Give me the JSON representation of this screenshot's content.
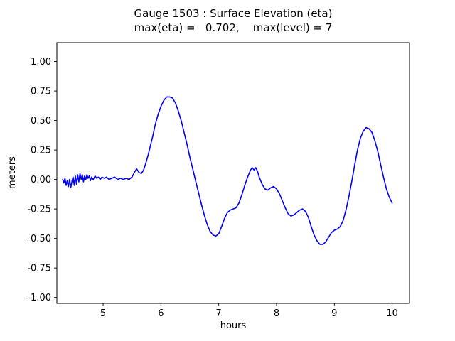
{
  "figure": {
    "background": "#ffffff"
  },
  "chart_data": {
    "type": "line",
    "title": "Gauge 1503 : Surface Elevation (eta)",
    "subtitle": "max(eta) =   0.702,    max(level) = 7",
    "xlabel": "hours",
    "ylabel": "meters",
    "xlim": [
      4.2,
      10.3
    ],
    "ylim": [
      -1.05,
      1.16
    ],
    "xticks": [
      5,
      6,
      7,
      8,
      9,
      10
    ],
    "yticks": [
      -1.0,
      -0.75,
      -0.5,
      -0.25,
      0.0,
      0.25,
      0.5,
      0.75,
      1.0
    ],
    "grid": false,
    "legend": "none",
    "line_color": "#0000ff",
    "max_eta": 0.702,
    "max_level": 7,
    "series": [
      {
        "name": "eta",
        "points": [
          [
            4.3,
            0.0
          ],
          [
            4.32,
            -0.03
          ],
          [
            4.34,
            0.01
          ],
          [
            4.36,
            -0.05
          ],
          [
            4.38,
            -0.01
          ],
          [
            4.4,
            -0.06
          ],
          [
            4.42,
            0.0
          ],
          [
            4.44,
            -0.07
          ],
          [
            4.46,
            -0.02
          ],
          [
            4.48,
            0.02
          ],
          [
            4.5,
            -0.05
          ],
          [
            4.52,
            0.03
          ],
          [
            4.54,
            -0.04
          ],
          [
            4.56,
            0.04
          ],
          [
            4.58,
            -0.02
          ],
          [
            4.6,
            0.05
          ],
          [
            4.62,
            0.0
          ],
          [
            4.64,
            0.04
          ],
          [
            4.66,
            -0.02
          ],
          [
            4.68,
            0.03
          ],
          [
            4.7,
            0.0
          ],
          [
            4.72,
            0.04
          ],
          [
            4.74,
            0.01
          ],
          [
            4.76,
            0.03
          ],
          [
            4.78,
            -0.01
          ],
          [
            4.8,
            0.02
          ],
          [
            4.83,
            0.0
          ],
          [
            4.86,
            0.03
          ],
          [
            4.89,
            0.01
          ],
          [
            4.92,
            0.02
          ],
          [
            4.95,
            0.0
          ],
          [
            4.98,
            0.02
          ],
          [
            5.02,
            0.01
          ],
          [
            5.06,
            0.02
          ],
          [
            5.1,
            0.0
          ],
          [
            5.15,
            0.01
          ],
          [
            5.2,
            0.02
          ],
          [
            5.25,
            0.0
          ],
          [
            5.3,
            0.01
          ],
          [
            5.35,
            0.0
          ],
          [
            5.4,
            0.01
          ],
          [
            5.45,
            0.0
          ],
          [
            5.5,
            0.02
          ],
          [
            5.54,
            0.06
          ],
          [
            5.58,
            0.09
          ],
          [
            5.62,
            0.06
          ],
          [
            5.66,
            0.05
          ],
          [
            5.7,
            0.08
          ],
          [
            5.74,
            0.14
          ],
          [
            5.78,
            0.21
          ],
          [
            5.82,
            0.29
          ],
          [
            5.86,
            0.37
          ],
          [
            5.9,
            0.46
          ],
          [
            5.95,
            0.55
          ],
          [
            6.0,
            0.62
          ],
          [
            6.05,
            0.67
          ],
          [
            6.1,
            0.7
          ],
          [
            6.15,
            0.7
          ],
          [
            6.2,
            0.69
          ],
          [
            6.25,
            0.65
          ],
          [
            6.3,
            0.58
          ],
          [
            6.35,
            0.5
          ],
          [
            6.4,
            0.4
          ],
          [
            6.45,
            0.3
          ],
          [
            6.5,
            0.19
          ],
          [
            6.55,
            0.09
          ],
          [
            6.6,
            -0.01
          ],
          [
            6.65,
            -0.11
          ],
          [
            6.7,
            -0.21
          ],
          [
            6.75,
            -0.3
          ],
          [
            6.8,
            -0.38
          ],
          [
            6.85,
            -0.44
          ],
          [
            6.9,
            -0.47
          ],
          [
            6.95,
            -0.48
          ],
          [
            7.0,
            -0.46
          ],
          [
            7.05,
            -0.4
          ],
          [
            7.1,
            -0.33
          ],
          [
            7.15,
            -0.28
          ],
          [
            7.2,
            -0.26
          ],
          [
            7.25,
            -0.25
          ],
          [
            7.3,
            -0.24
          ],
          [
            7.35,
            -0.2
          ],
          [
            7.4,
            -0.13
          ],
          [
            7.45,
            -0.05
          ],
          [
            7.5,
            0.02
          ],
          [
            7.55,
            0.08
          ],
          [
            7.58,
            0.1
          ],
          [
            7.61,
            0.08
          ],
          [
            7.64,
            0.1
          ],
          [
            7.67,
            0.07
          ],
          [
            7.7,
            0.02
          ],
          [
            7.75,
            -0.04
          ],
          [
            7.8,
            -0.08
          ],
          [
            7.85,
            -0.09
          ],
          [
            7.9,
            -0.07
          ],
          [
            7.95,
            -0.06
          ],
          [
            8.0,
            -0.08
          ],
          [
            8.05,
            -0.12
          ],
          [
            8.1,
            -0.18
          ],
          [
            8.15,
            -0.24
          ],
          [
            8.2,
            -0.29
          ],
          [
            8.25,
            -0.31
          ],
          [
            8.3,
            -0.3
          ],
          [
            8.35,
            -0.28
          ],
          [
            8.4,
            -0.26
          ],
          [
            8.45,
            -0.25
          ],
          [
            8.5,
            -0.27
          ],
          [
            8.55,
            -0.32
          ],
          [
            8.6,
            -0.4
          ],
          [
            8.65,
            -0.47
          ],
          [
            8.7,
            -0.52
          ],
          [
            8.75,
            -0.55
          ],
          [
            8.8,
            -0.55
          ],
          [
            8.85,
            -0.53
          ],
          [
            8.9,
            -0.49
          ],
          [
            8.95,
            -0.45
          ],
          [
            9.0,
            -0.43
          ],
          [
            9.05,
            -0.42
          ],
          [
            9.1,
            -0.4
          ],
          [
            9.15,
            -0.35
          ],
          [
            9.2,
            -0.26
          ],
          [
            9.25,
            -0.15
          ],
          [
            9.3,
            -0.02
          ],
          [
            9.35,
            0.12
          ],
          [
            9.4,
            0.25
          ],
          [
            9.45,
            0.35
          ],
          [
            9.5,
            0.41
          ],
          [
            9.55,
            0.44
          ],
          [
            9.6,
            0.43
          ],
          [
            9.65,
            0.4
          ],
          [
            9.7,
            0.33
          ],
          [
            9.75,
            0.24
          ],
          [
            9.8,
            0.13
          ],
          [
            9.85,
            0.02
          ],
          [
            9.9,
            -0.08
          ],
          [
            9.95,
            -0.15
          ],
          [
            10.0,
            -0.2
          ]
        ]
      }
    ]
  }
}
